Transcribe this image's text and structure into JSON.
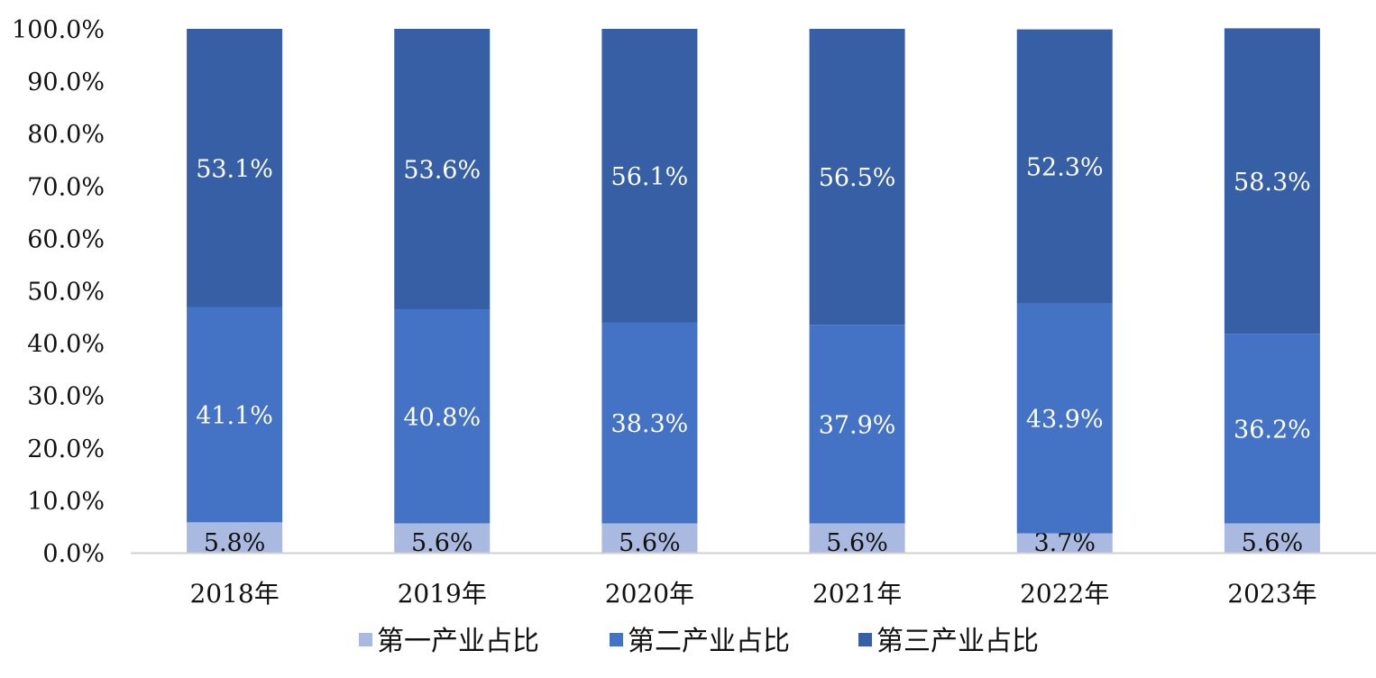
{
  "chart_data": {
    "type": "bar",
    "stacked": true,
    "categories": [
      "2018年",
      "2019年",
      "2020年",
      "2021年",
      "2022年",
      "2023年"
    ],
    "series": [
      {
        "name": "第一产业占比",
        "values": [
          5.8,
          5.6,
          5.6,
          5.6,
          3.7,
          5.6
        ],
        "labels": [
          "5.8%",
          "5.6%",
          "5.6%",
          "5.6%",
          "3.7%",
          "5.6%"
        ],
        "color": "#a9b9e0"
      },
      {
        "name": "第二产业占比",
        "values": [
          41.1,
          40.8,
          38.3,
          37.9,
          43.9,
          36.2
        ],
        "labels": [
          "41.1%",
          "40.8%",
          "38.3%",
          "37.9%",
          "43.9%",
          "36.2%"
        ],
        "color": "#4472c4"
      },
      {
        "name": "第三产业占比",
        "values": [
          53.1,
          53.6,
          56.1,
          56.5,
          52.3,
          58.3
        ],
        "labels": [
          "53.1%",
          "53.6%",
          "56.1%",
          "56.5%",
          "52.3%",
          "58.3%"
        ],
        "color": "#365fa6"
      }
    ],
    "ylim": [
      0,
      100
    ],
    "yticks": [
      "0.0%",
      "10.0%",
      "20.0%",
      "30.0%",
      "40.0%",
      "50.0%",
      "60.0%",
      "70.0%",
      "80.0%",
      "90.0%",
      "100.0%"
    ],
    "grid": false,
    "legend": "bottom-center",
    "title": "",
    "xlabel": "",
    "ylabel": ""
  }
}
